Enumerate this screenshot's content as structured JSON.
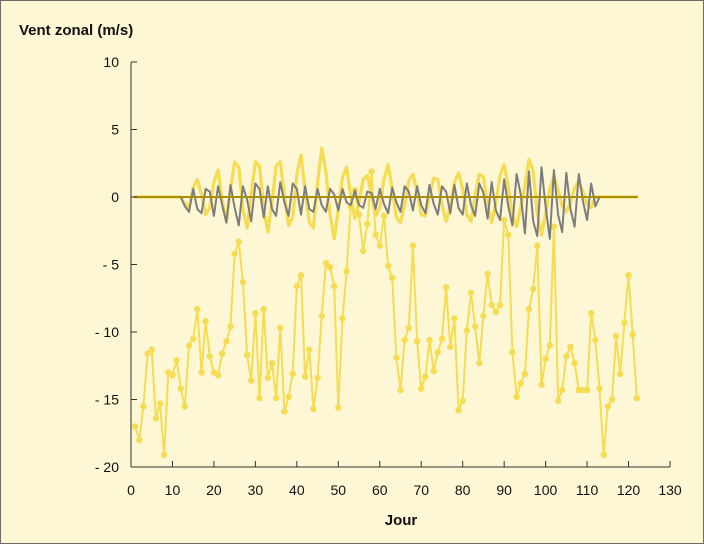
{
  "chart_data": {
    "type": "line",
    "title": "",
    "ylabel": "Vent zonal (m/s)",
    "xlabel": "Jour",
    "xlim": [
      0,
      130
    ],
    "ylim": [
      -20,
      10
    ],
    "x_ticks": [
      0,
      10,
      20,
      30,
      40,
      50,
      60,
      70,
      80,
      90,
      100,
      110,
      120,
      130
    ],
    "y_ticks": [
      10,
      5,
      0,
      -5,
      -10,
      -15,
      -20
    ],
    "y_tick_labels": [
      "10",
      "5",
      "0",
      "- 5",
      "- 10",
      "- 15",
      "- 20"
    ],
    "grid": false,
    "legend": "none",
    "colors": {
      "observed": "#f5dc52",
      "tidal_yellow": "#f5dc52",
      "tidal_gray": "#7d7d7d",
      "baseline": "#a88f10",
      "axis": "#333333",
      "background": "#fdf7d6"
    },
    "series": [
      {
        "style": "line-with-markers",
        "color": "#f5dc52",
        "x": [
          1,
          2,
          3,
          4,
          5,
          6,
          7,
          8,
          9,
          10,
          11,
          12,
          13,
          14,
          15,
          16,
          17,
          18,
          19,
          20,
          21,
          22,
          23,
          24,
          25,
          26,
          27,
          28,
          29,
          30,
          31,
          32,
          33,
          34,
          35,
          36,
          37,
          38,
          39,
          40,
          41,
          42,
          43,
          44,
          45,
          46,
          47,
          48,
          49,
          50,
          51,
          52,
          53,
          54,
          55,
          56,
          57,
          58,
          59,
          60,
          61,
          62,
          63,
          64,
          65,
          66,
          67,
          68,
          69,
          70,
          71,
          72,
          73,
          74,
          75,
          76,
          77,
          78,
          79,
          80,
          81,
          82,
          83,
          84,
          85,
          86,
          87,
          88,
          89,
          90,
          91,
          92,
          93,
          94,
          95,
          96,
          97,
          98,
          99,
          100,
          101,
          102,
          103,
          104,
          105,
          106,
          107,
          108,
          109,
          110,
          111,
          112,
          113,
          114,
          115,
          116,
          117,
          118,
          119,
          120,
          121,
          122
        ],
        "y": [
          -17,
          -18,
          -15.5,
          -11.6,
          -11.3,
          -16.4,
          -15.3,
          -19.1,
          -13,
          -13.2,
          -12.1,
          -14.2,
          -15.5,
          -11,
          -10.5,
          -8.3,
          -13,
          -9.2,
          -11.8,
          -13,
          -13.2,
          -11.6,
          -10.7,
          -9.6,
          -4.2,
          -3.3,
          -6.3,
          -11.7,
          -13.6,
          -8.6,
          -14.9,
          -8.3,
          -13.4,
          -12.3,
          -14.9,
          -9.7,
          -15.9,
          -14.8,
          -13.1,
          -6.6,
          -5.8,
          -13.3,
          -11.3,
          -15.7,
          -13.4,
          -8.8,
          -4.9,
          -5.2,
          -6.6,
          -15.6,
          -9,
          -5.5,
          -0.7,
          0.5,
          -1.3,
          -4,
          -2,
          1.9,
          -2.8,
          -3.6,
          -1.4,
          -5.1,
          -6,
          -11.9,
          -14.3,
          -10.6,
          -9.7,
          -3.6,
          -10.7,
          -14.2,
          -13.3,
          -10.6,
          -12.9,
          -11.5,
          -10.5,
          -6.7,
          -11.1,
          -9,
          -15.8,
          -15.1,
          -9.9,
          -7.1,
          -9.6,
          -12.3,
          -8.8,
          -5.7,
          -8,
          -8.5,
          -8,
          -1.7,
          -2.8,
          -11.5,
          -14.8,
          -13.8,
          -13.1,
          -8.3,
          -6.8,
          -3.6,
          -13.9,
          -12,
          -11,
          -2.2,
          -15.1,
          -14.3,
          -11.8,
          -11.1,
          -12.3,
          -14.3,
          -14.3,
          -14.3,
          -8.6,
          -10.6,
          -14.2,
          -19.1,
          -15.5,
          -15,
          -10.3,
          -13.1,
          -9.3,
          -5.8,
          -10.2,
          -14.9
        ]
      },
      {
        "style": "line",
        "color": "#f5dc52",
        "x": [
          1,
          2,
          3,
          4,
          5,
          6,
          7,
          8,
          9,
          10,
          11,
          12,
          13,
          14,
          15,
          16,
          17,
          18,
          19,
          20,
          21,
          22,
          23,
          24,
          25,
          26,
          27,
          28,
          29,
          30,
          31,
          32,
          33,
          34,
          35,
          36,
          37,
          38,
          39,
          40,
          41,
          42,
          43,
          44,
          45,
          46,
          47,
          48,
          49,
          50,
          51,
          52,
          53,
          54,
          55,
          56,
          57,
          58,
          59,
          60,
          61,
          62,
          63,
          64,
          65,
          66,
          67,
          68,
          69,
          70,
          71,
          72,
          73,
          74,
          75,
          76,
          77,
          78,
          79,
          80,
          81,
          82,
          83,
          84,
          85,
          86,
          87,
          88,
          89,
          90,
          91,
          92,
          93,
          94,
          95,
          96,
          97,
          98,
          99,
          100,
          101,
          102,
          103,
          104,
          105,
          106,
          107,
          108,
          109,
          110,
          111,
          112,
          113,
          114,
          115,
          116,
          117,
          118,
          119,
          120,
          121,
          122
        ],
        "y": [
          0,
          0,
          0,
          0,
          0,
          0,
          0,
          0,
          0,
          0,
          0,
          0,
          -0.5,
          -0.8,
          0.7,
          1.3,
          0.2,
          -1.3,
          -0.8,
          1.1,
          2,
          -0.3,
          -1.8,
          0.6,
          2.6,
          2.2,
          -0.9,
          -2.3,
          0.2,
          2.6,
          2.3,
          -0.9,
          -2.6,
          -0.4,
          2.3,
          2.6,
          0.1,
          -2.1,
          -1.5,
          1.7,
          3.1,
          0.5,
          -1.9,
          -2.3,
          1.1,
          3.6,
          1.9,
          -1.3,
          -3.1,
          -0.9,
          1.5,
          2.2,
          0.1,
          -1.6,
          -0.4,
          1.3,
          1.6,
          0.1,
          -1.4,
          -0.8,
          1.3,
          2.4,
          0.6,
          -1.5,
          -1.9,
          -0.6,
          1.2,
          1.7,
          0.4,
          -1.3,
          -1.4,
          0.1,
          1.4,
          1.3,
          -0.6,
          -1.8,
          -0.7,
          1.1,
          1.8,
          0.6,
          -1.3,
          -1.8,
          0.1,
          1.7,
          1.5,
          -0.6,
          -1.9,
          -0.4,
          1.6,
          2.4,
          0.7,
          -1.3,
          -2.2,
          -0.8,
          0.8,
          2.8,
          1.9,
          -1.2,
          -2.8,
          -1.3,
          0.6,
          1.5,
          0.5,
          -0.7,
          -1.1,
          -0.4,
          0.7,
          1.2,
          0.4,
          -0.5,
          -0.8,
          0,
          0,
          0,
          0,
          0,
          0,
          0,
          0,
          0,
          0,
          0
        ]
      },
      {
        "style": "line",
        "color": "#7d7d7d",
        "x": [
          1,
          2,
          3,
          4,
          5,
          6,
          7,
          8,
          9,
          10,
          11,
          12,
          13,
          14,
          15,
          16,
          17,
          18,
          19,
          20,
          21,
          22,
          23,
          24,
          25,
          26,
          27,
          28,
          29,
          30,
          31,
          32,
          33,
          34,
          35,
          36,
          37,
          38,
          39,
          40,
          41,
          42,
          43,
          44,
          45,
          46,
          47,
          48,
          49,
          50,
          51,
          52,
          53,
          54,
          55,
          56,
          57,
          58,
          59,
          60,
          61,
          62,
          63,
          64,
          65,
          66,
          67,
          68,
          69,
          70,
          71,
          72,
          73,
          74,
          75,
          76,
          77,
          78,
          79,
          80,
          81,
          82,
          83,
          84,
          85,
          86,
          87,
          88,
          89,
          90,
          91,
          92,
          93,
          94,
          95,
          96,
          97,
          98,
          99,
          100,
          101,
          102,
          103,
          104,
          105,
          106,
          107,
          108,
          109,
          110,
          111,
          112,
          113,
          114,
          115,
          116,
          117,
          118,
          119,
          120,
          121,
          122
        ],
        "y": [
          0,
          0,
          0,
          0,
          0,
          0,
          0,
          0,
          0,
          0,
          0,
          0,
          -0.7,
          -1.1,
          0.6,
          -0.9,
          -1.2,
          0.6,
          0.4,
          -1.4,
          0.8,
          -0.6,
          -1.9,
          0.9,
          -0.8,
          -2.1,
          0.8,
          -0.2,
          -1.8,
          1,
          0.6,
          -1.5,
          0.8,
          -0.9,
          -1.4,
          1.1,
          -0.4,
          -1.4,
          1,
          0.6,
          -1.3,
          0.8,
          -0.9,
          -1.1,
          0.6,
          -0.6,
          -1.1,
          0.6,
          0.2,
          -1,
          0.6,
          -0.4,
          -0.6,
          0.5,
          -0.6,
          -0.8,
          0.4,
          0.3,
          -0.9,
          0.6,
          -0.5,
          -1.2,
          0.7,
          -0.4,
          -1.1,
          0.8,
          0.4,
          -1,
          0.8,
          -0.6,
          -1.2,
          0.9,
          -0.5,
          -1.3,
          0.8,
          0.4,
          -1.2,
          0.9,
          -0.8,
          -1.3,
          1,
          -0.6,
          -1.4,
          1,
          0.3,
          -1.6,
          1.1,
          -1,
          -1.7,
          1.3,
          -0.7,
          -2.1,
          1.7,
          0.2,
          -2.7,
          1.9,
          -1.8,
          -2.9,
          2.2,
          -0.7,
          -3.1,
          2,
          -1.3,
          -2.6,
          1.8,
          -0.9,
          -2.2,
          1.7,
          -0.3,
          -1.7,
          1,
          -0.7,
          0,
          0,
          0,
          0,
          0,
          0,
          0,
          0,
          0,
          0
        ]
      },
      {
        "style": "line",
        "color": "#a88f10",
        "x": [
          1,
          122
        ],
        "y": [
          0,
          0
        ]
      }
    ]
  }
}
